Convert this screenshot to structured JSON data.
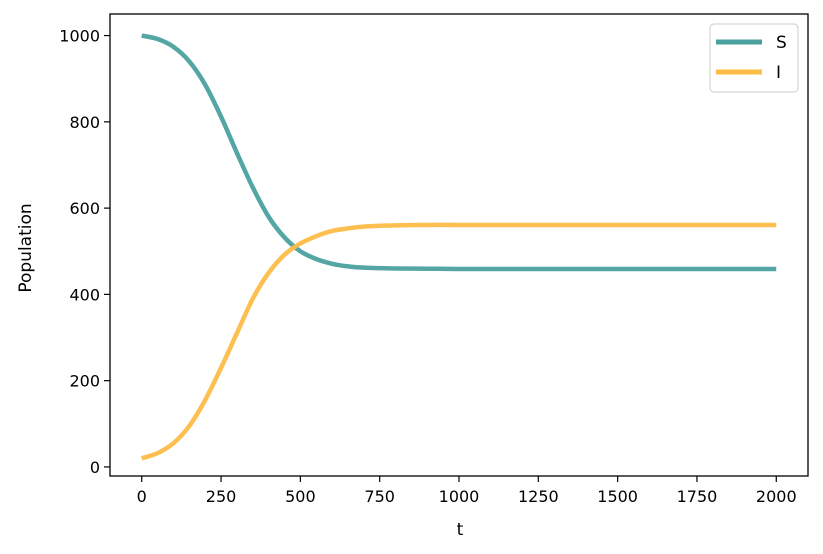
{
  "chart_data": {
    "type": "line",
    "title": "",
    "xlabel": "t",
    "ylabel": "Population",
    "xlim": [
      -100,
      2100
    ],
    "ylim": [
      -21,
      1050
    ],
    "xticks": [
      0,
      250,
      500,
      750,
      1000,
      1250,
      1500,
      1750,
      2000
    ],
    "yticks": [
      0,
      200,
      400,
      600,
      800,
      1000
    ],
    "grid": false,
    "legend_position": "upper-right",
    "series": [
      {
        "name": "S",
        "color": "#4aa19e",
        "x": [
          0,
          50,
          100,
          150,
          200,
          250,
          300,
          350,
          400,
          450,
          500,
          550,
          600,
          650,
          700,
          750,
          800,
          900,
          1000,
          1200,
          1500,
          2000
        ],
        "y": [
          1000,
          992,
          974,
          940,
          886,
          812,
          728,
          648,
          580,
          532,
          500,
          482,
          471,
          465,
          462,
          461,
          460,
          459.5,
          459,
          459,
          459,
          459
        ]
      },
      {
        "name": "I",
        "color": "#fdbc46",
        "x": [
          0,
          50,
          100,
          150,
          200,
          250,
          300,
          350,
          400,
          450,
          500,
          550,
          600,
          650,
          700,
          750,
          800,
          900,
          1000,
          1200,
          1500,
          2000
        ],
        "y": [
          20,
          32,
          55,
          95,
          155,
          230,
          310,
          390,
          450,
          492,
          518,
          535,
          547,
          553,
          557,
          559,
          560,
          561,
          561,
          561,
          561,
          561
        ]
      }
    ]
  }
}
